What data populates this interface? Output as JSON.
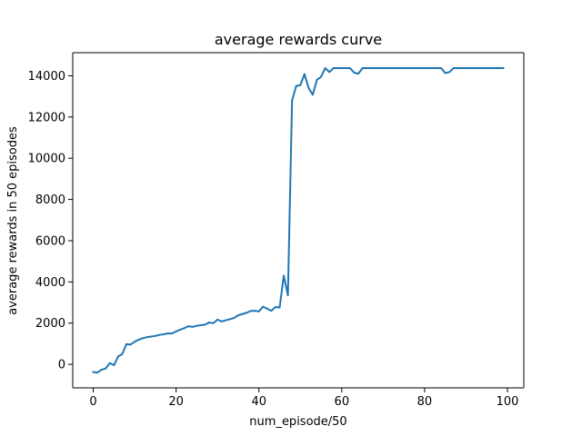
{
  "chart_data": {
    "type": "line",
    "title": "average rewards curve",
    "xlabel": "num_episode/50",
    "ylabel": "average rewards in 50 episodes",
    "xlim": [
      -4.95,
      103.95
    ],
    "ylim": [
      -1140,
      15120
    ],
    "xticks": [
      0,
      20,
      40,
      60,
      80,
      100
    ],
    "yticks": [
      0,
      2000,
      4000,
      6000,
      8000,
      10000,
      12000,
      14000
    ],
    "grid": false,
    "series": [
      {
        "color": "#1f77b4",
        "x": [
          0,
          1,
          2,
          3,
          4,
          5,
          6,
          7,
          8,
          9,
          10,
          11,
          12,
          13,
          14,
          15,
          16,
          17,
          18,
          19,
          20,
          21,
          22,
          23,
          24,
          25,
          26,
          27,
          28,
          29,
          30,
          31,
          32,
          33,
          34,
          35,
          36,
          37,
          38,
          39,
          40,
          41,
          42,
          43,
          44,
          45,
          46,
          47,
          48,
          49,
          50,
          51,
          52,
          53,
          54,
          55,
          56,
          57,
          58,
          59,
          60,
          61,
          62,
          63,
          64,
          65,
          66,
          67,
          68,
          69,
          70,
          71,
          72,
          73,
          74,
          75,
          76,
          77,
          78,
          79,
          80,
          81,
          82,
          83,
          84,
          85,
          86,
          87,
          88,
          89,
          90,
          91,
          92,
          93,
          94,
          95,
          96,
          97,
          98,
          99
        ],
        "values": [
          -370,
          -400,
          -260,
          -200,
          60,
          -40,
          380,
          500,
          980,
          960,
          1100,
          1200,
          1270,
          1320,
          1350,
          1380,
          1430,
          1460,
          1500,
          1500,
          1600,
          1680,
          1760,
          1850,
          1820,
          1870,
          1900,
          1930,
          2030,
          2000,
          2170,
          2080,
          2140,
          2190,
          2250,
          2380,
          2440,
          2500,
          2590,
          2600,
          2570,
          2800,
          2700,
          2600,
          2780,
          2760,
          4300,
          3350,
          12800,
          13500,
          13550,
          14080,
          13400,
          13080,
          13800,
          13950,
          14370,
          14180,
          14370,
          14370,
          14370,
          14370,
          14370,
          14150,
          14100,
          14370,
          14370,
          14370,
          14370,
          14370,
          14370,
          14370,
          14370,
          14370,
          14370,
          14370,
          14370,
          14370,
          14370,
          14370,
          14370,
          14370,
          14370,
          14370,
          14370,
          14130,
          14180,
          14370,
          14370,
          14370,
          14370,
          14370,
          14370,
          14370,
          14370,
          14370,
          14370,
          14370,
          14370,
          14370
        ]
      }
    ]
  }
}
